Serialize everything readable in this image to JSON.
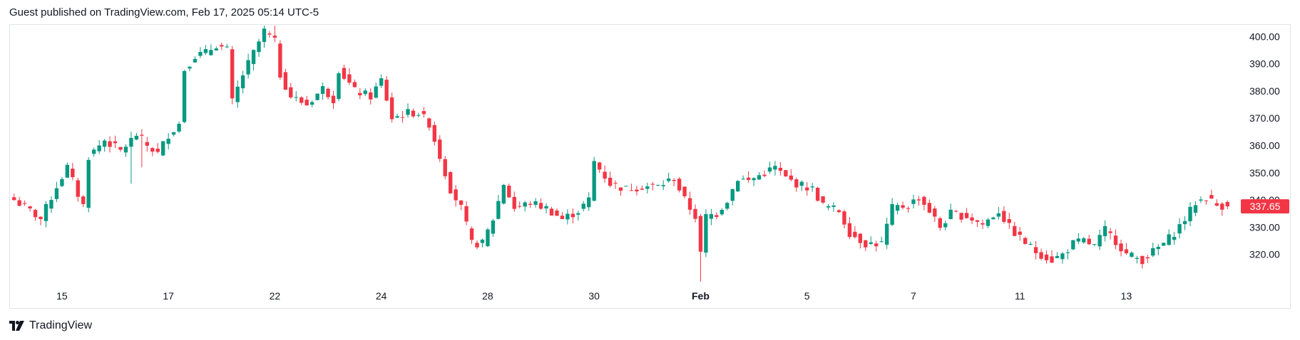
{
  "header": {
    "text": "Guest published on TradingView.com, Feb 17, 2025 05:14 UTC-5"
  },
  "footer": {
    "brand": "TradingView"
  },
  "colors": {
    "up": "#089981",
    "down": "#f23645",
    "grid": "#e0e3eb",
    "text": "#131722"
  },
  "chart_data": {
    "type": "candlestick",
    "title": "",
    "y_axis": {
      "position": "right",
      "ticks": [
        320,
        330,
        340,
        350,
        360,
        370,
        380,
        390,
        400
      ],
      "tick_labels": [
        "320.00",
        "330.00",
        "340.00",
        "350.00",
        "360.00",
        "370.00",
        "380.00",
        "390.00",
        "400.00"
      ],
      "range": [
        310,
        404
      ]
    },
    "x_axis": {
      "labels": [
        {
          "text": "15",
          "index": 9,
          "bold": false
        },
        {
          "text": "17",
          "index": 29,
          "bold": false
        },
        {
          "text": "22",
          "index": 49,
          "bold": false
        },
        {
          "text": "24",
          "index": 69,
          "bold": false
        },
        {
          "text": "28",
          "index": 89,
          "bold": false
        },
        {
          "text": "30",
          "index": 109,
          "bold": false
        },
        {
          "text": "Feb",
          "index": 129,
          "bold": true
        },
        {
          "text": "5",
          "index": 149,
          "bold": false
        },
        {
          "text": "7",
          "index": 169,
          "bold": false
        },
        {
          "text": "11",
          "index": 189,
          "bold": false
        },
        {
          "text": "13",
          "index": 209,
          "bold": false
        }
      ],
      "count": 229
    },
    "last_price": {
      "value": 337.65,
      "label": "337.65",
      "direction": "down"
    },
    "anchors": [
      [
        0,
        340
      ],
      [
        3,
        336
      ],
      [
        5,
        333
      ],
      [
        8,
        345
      ],
      [
        10,
        352
      ],
      [
        12,
        342
      ],
      [
        13,
        338
      ],
      [
        14,
        356
      ],
      [
        17,
        362
      ],
      [
        20,
        358
      ],
      [
        23,
        364
      ],
      [
        25,
        360
      ],
      [
        27,
        357
      ],
      [
        29,
        364
      ],
      [
        31,
        368
      ],
      [
        32,
        388
      ],
      [
        34,
        393
      ],
      [
        36,
        394
      ],
      [
        38,
        397
      ],
      [
        40,
        395
      ],
      [
        41,
        376
      ],
      [
        43,
        386
      ],
      [
        45,
        394
      ],
      [
        47,
        402
      ],
      [
        49,
        398
      ],
      [
        50,
        386
      ],
      [
        52,
        378
      ],
      [
        55,
        375
      ],
      [
        58,
        381
      ],
      [
        60,
        377
      ],
      [
        61,
        388
      ],
      [
        64,
        380
      ],
      [
        67,
        378
      ],
      [
        69,
        384
      ],
      [
        71,
        370
      ],
      [
        74,
        372
      ],
      [
        76,
        372
      ],
      [
        78,
        368
      ],
      [
        80,
        356
      ],
      [
        82,
        344
      ],
      [
        84,
        337
      ],
      [
        86,
        324
      ],
      [
        88,
        324
      ],
      [
        90,
        333
      ],
      [
        92,
        346
      ],
      [
        94,
        337
      ],
      [
        97,
        339
      ],
      [
        100,
        337
      ],
      [
        103,
        333
      ],
      [
        106,
        336
      ],
      [
        108,
        340
      ],
      [
        109,
        354
      ],
      [
        112,
        346
      ],
      [
        115,
        344
      ],
      [
        118,
        345
      ],
      [
        121,
        345
      ],
      [
        124,
        348
      ],
      [
        126,
        340
      ],
      [
        128,
        334
      ],
      [
        129,
        320
      ],
      [
        130,
        334
      ],
      [
        132,
        335
      ],
      [
        134,
        340
      ],
      [
        136,
        348
      ],
      [
        138,
        347
      ],
      [
        141,
        350
      ],
      [
        143,
        352
      ],
      [
        145,
        348
      ],
      [
        147,
        346
      ],
      [
        150,
        344
      ],
      [
        152,
        338
      ],
      [
        155,
        336
      ],
      [
        157,
        328
      ],
      [
        160,
        324
      ],
      [
        163,
        324
      ],
      [
        165,
        337
      ],
      [
        168,
        338
      ],
      [
        170,
        341
      ],
      [
        172,
        336
      ],
      [
        174,
        330
      ],
      [
        176,
        335
      ],
      [
        179,
        334
      ],
      [
        182,
        331
      ],
      [
        185,
        336
      ],
      [
        187,
        330
      ],
      [
        189,
        326
      ],
      [
        192,
        321
      ],
      [
        195,
        318
      ],
      [
        197,
        320
      ],
      [
        199,
        324
      ],
      [
        201,
        325
      ],
      [
        203,
        323
      ],
      [
        205,
        329
      ],
      [
        207,
        325
      ],
      [
        209,
        320
      ],
      [
        212,
        318
      ],
      [
        214,
        321
      ],
      [
        216,
        324
      ],
      [
        218,
        328
      ],
      [
        220,
        333
      ],
      [
        222,
        339
      ],
      [
        224,
        341
      ],
      [
        226,
        338
      ],
      [
        228,
        337.65
      ]
    ]
  }
}
